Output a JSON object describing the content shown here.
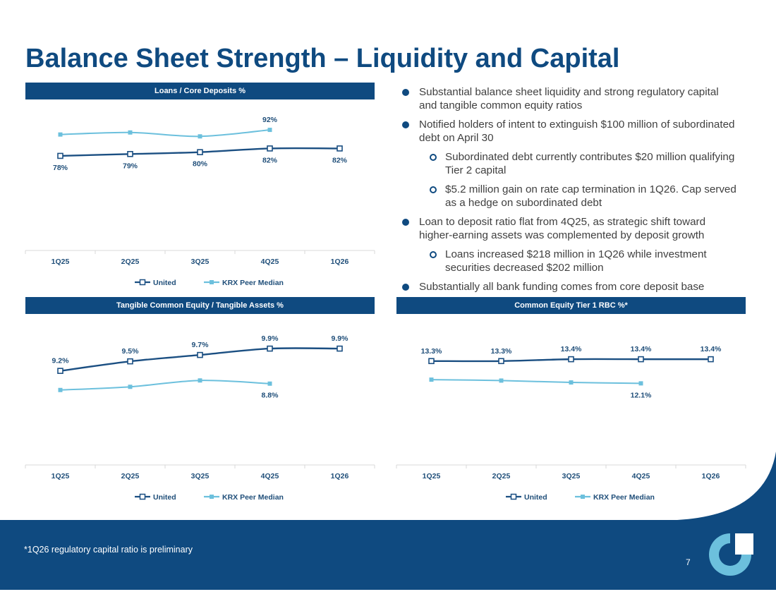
{
  "slide": {
    "title": "Balance Sheet Strength – Liquidity and Capital",
    "footnote": "*1Q26 regulatory capital ratio is preliminary",
    "page_number": "7",
    "colors": {
      "brand_navy": "#0f4a80",
      "united_series": "#1b4f82",
      "peer_series": "#6cc0dd"
    }
  },
  "bullets": [
    {
      "level": 1,
      "text": "Substantial balance sheet liquidity and strong regulatory capital and tangible common equity ratios"
    },
    {
      "level": 1,
      "text": "Notified holders of intent to extinguish $100 million of subordinated debt on April 30"
    },
    {
      "level": 2,
      "text": "Subordinated debt currently contributes $20 million qualifying Tier 2 capital"
    },
    {
      "level": 2,
      "text": "$5.2 million gain on rate cap termination in 1Q26. Cap served as a hedge on subordinated debt"
    },
    {
      "level": 1,
      "text": "Loan to deposit ratio flat from 4Q25, as strategic shift toward higher-earning assets was complemented by deposit growth"
    },
    {
      "level": 2,
      "text": "Loans increased $218 million in 1Q26 while investment securities decreased $202 million"
    },
    {
      "level": 1,
      "text": "Substantially all bank funding comes from core deposit base"
    }
  ],
  "chart_data": [
    {
      "id": "loans",
      "type": "line",
      "title": "Loans / Core Deposits %",
      "categories": [
        "1Q25",
        "2Q25",
        "3Q25",
        "4Q25",
        "1Q26"
      ],
      "ylim": [
        40,
        100
      ],
      "grid": false,
      "legend_position": "bottom",
      "series": [
        {
          "name": "United",
          "values": [
            78,
            79,
            80,
            82,
            82
          ],
          "labels": [
            "78%",
            "79%",
            "80%",
            "82%",
            "82%"
          ],
          "label_position": "below"
        },
        {
          "name": "KRX Peer Median",
          "values": [
            89.5,
            90.6,
            88.5,
            92,
            null
          ],
          "labels": [
            "",
            "",
            "",
            "92%",
            ""
          ],
          "label_position": "above"
        }
      ]
    },
    {
      "id": "tce",
      "type": "line",
      "title": "Tangible Common Equity / Tangible Assets %",
      "categories": [
        "1Q25",
        "2Q25",
        "3Q25",
        "4Q25",
        "1Q26"
      ],
      "ylim": [
        7,
        10.5
      ],
      "grid": false,
      "legend_position": "bottom",
      "series": [
        {
          "name": "United",
          "values": [
            9.2,
            9.5,
            9.7,
            9.9,
            9.9
          ],
          "labels": [
            "9.2%",
            "9.5%",
            "9.7%",
            "9.9%",
            "9.9%"
          ],
          "label_position": "above"
        },
        {
          "name": "KRX Peer Median",
          "values": [
            8.6,
            8.7,
            8.9,
            8.8,
            null
          ],
          "labels": [
            "",
            "",
            "",
            "8.8%",
            ""
          ],
          "label_position": "below"
        }
      ]
    },
    {
      "id": "cet1",
      "type": "line",
      "title": "Common Equity Tier 1 RBC %*",
      "categories": [
        "1Q25",
        "2Q25",
        "3Q25",
        "4Q25",
        "1Q26"
      ],
      "ylim": [
        9,
        15
      ],
      "grid": false,
      "legend_position": "bottom",
      "series": [
        {
          "name": "United",
          "values": [
            13.3,
            13.3,
            13.4,
            13.4,
            13.4
          ],
          "labels": [
            "13.3%",
            "13.3%",
            "13.4%",
            "13.4%",
            "13.4%"
          ],
          "label_position": "above"
        },
        {
          "name": "KRX Peer Median",
          "values": [
            12.3,
            12.25,
            12.15,
            12.1,
            null
          ],
          "labels": [
            "",
            "",
            "",
            "12.1%",
            ""
          ],
          "label_position": "below"
        }
      ]
    }
  ]
}
